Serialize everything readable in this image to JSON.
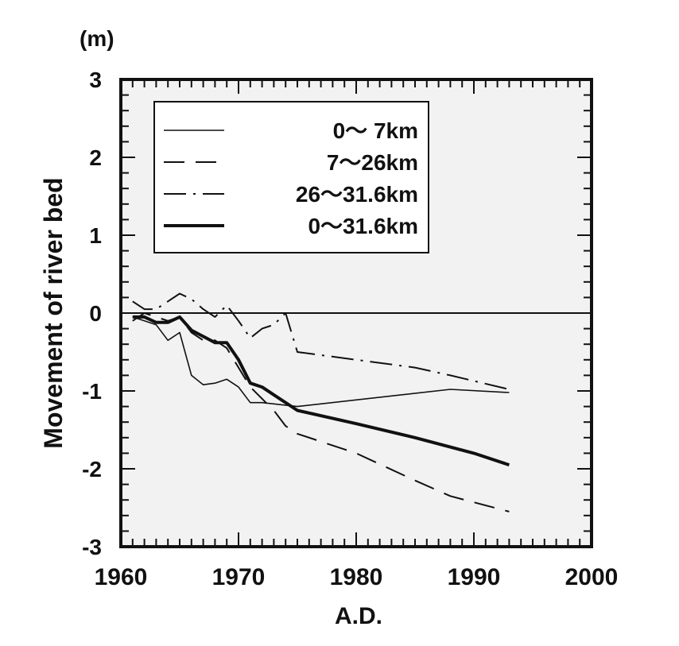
{
  "chart_data": {
    "type": "line",
    "unit_label": "(m)",
    "xlabel": "A.D.",
    "ylabel": "Movement of river bed",
    "xlim": [
      1960,
      2000
    ],
    "ylim": [
      -3,
      3
    ],
    "x_ticks": [
      1960,
      1970,
      1980,
      1990,
      2000
    ],
    "y_ticks": [
      3,
      2,
      1,
      0,
      -1,
      -2,
      -3
    ],
    "legend_position": "top-left",
    "series": [
      {
        "name": "0～ 7km",
        "style": "thin-solid",
        "x": [
          1961,
          1962,
          1963,
          1964,
          1965,
          1966,
          1967,
          1968,
          1969,
          1970,
          1971,
          1972,
          1975,
          1988,
          1993
        ],
        "y": [
          -0.05,
          -0.1,
          -0.15,
          -0.35,
          -0.25,
          -0.8,
          -0.92,
          -0.9,
          -0.85,
          -0.95,
          -1.15,
          -1.15,
          -1.2,
          -0.98,
          -1.02
        ]
      },
      {
        "name": "7～26km",
        "style": "dashed",
        "x": [
          1961,
          1962,
          1963,
          1964,
          1965,
          1966,
          1967,
          1968,
          1969,
          1970,
          1971,
          1972,
          1973,
          1974,
          1975,
          1980,
          1985,
          1988,
          1993
        ],
        "y": [
          -0.1,
          0.0,
          -0.05,
          -0.1,
          -0.05,
          -0.25,
          -0.35,
          -0.35,
          -0.45,
          -0.7,
          -0.95,
          -1.1,
          -1.25,
          -1.45,
          -1.55,
          -1.8,
          -2.15,
          -2.35,
          -2.55
        ]
      },
      {
        "name": "26～31.6km",
        "style": "dash-dot",
        "x": [
          1961,
          1962,
          1963,
          1964,
          1965,
          1966,
          1967,
          1968,
          1969,
          1970,
          1971,
          1972,
          1973,
          1974,
          1975,
          1980,
          1985,
          1988,
          1993
        ],
        "y": [
          0.15,
          0.05,
          0.05,
          0.15,
          0.25,
          0.18,
          0.05,
          -0.05,
          0.1,
          -0.1,
          -0.32,
          -0.2,
          -0.15,
          0.0,
          -0.5,
          -0.6,
          -0.7,
          -0.8,
          -0.98
        ]
      },
      {
        "name": "0～31.6km",
        "style": "thick-solid",
        "x": [
          1961,
          1962,
          1963,
          1964,
          1965,
          1966,
          1967,
          1968,
          1969,
          1970,
          1971,
          1972,
          1973,
          1975,
          1980,
          1985,
          1990,
          1993
        ],
        "y": [
          -0.05,
          -0.05,
          -0.12,
          -0.12,
          -0.05,
          -0.22,
          -0.3,
          -0.38,
          -0.38,
          -0.6,
          -0.9,
          -0.95,
          -1.05,
          -1.25,
          -1.42,
          -1.6,
          -1.8,
          -1.95
        ]
      }
    ]
  }
}
